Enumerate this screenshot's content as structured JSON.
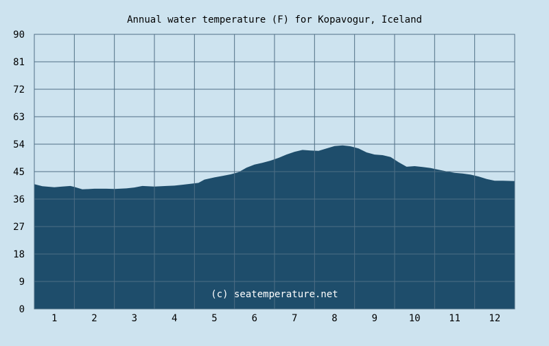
{
  "chart_data": {
    "type": "area",
    "title": "Annual water temperature (F) for Kopavogur, Iceland",
    "xlabel": "",
    "ylabel": "",
    "ylim": [
      0,
      90
    ],
    "xlim": [
      0.5,
      12.5
    ],
    "yticks": [
      "0",
      "9",
      "18",
      "27",
      "36",
      "45",
      "54",
      "63",
      "72",
      "81",
      "90"
    ],
    "xticks": [
      "1",
      "2",
      "3",
      "4",
      "5",
      "6",
      "7",
      "8",
      "9",
      "10",
      "11",
      "12"
    ],
    "grid": true,
    "series": [
      {
        "x": [
          0.5,
          0.7,
          1.0,
          1.2,
          1.4,
          1.5,
          1.7,
          2.0,
          2.3,
          2.5,
          2.8,
          3.0,
          3.2,
          3.5,
          3.8,
          4.0,
          4.2,
          4.4,
          4.6,
          4.75,
          5.0,
          5.2,
          5.4,
          5.6,
          5.8,
          6.0,
          6.2,
          6.4,
          6.6,
          6.8,
          7.0,
          7.2,
          7.4,
          7.6,
          7.8,
          8.0,
          8.2,
          8.4,
          8.6,
          8.8,
          9.0,
          9.2,
          9.4,
          9.6,
          9.8,
          10.0,
          10.2,
          10.4,
          10.6,
          10.8,
          11.0,
          11.2,
          11.4,
          11.6,
          11.8,
          12.0,
          12.2,
          12.5
        ],
        "values": [
          40.9,
          40.2,
          39.9,
          40.1,
          40.3,
          40.0,
          39.2,
          39.4,
          39.4,
          39.3,
          39.5,
          39.8,
          40.3,
          40.1,
          40.3,
          40.4,
          40.7,
          41.0,
          41.3,
          42.4,
          43.1,
          43.6,
          44.1,
          44.8,
          46.3,
          47.3,
          47.9,
          48.6,
          49.5,
          50.6,
          51.5,
          52.1,
          51.9,
          51.8,
          52.6,
          53.4,
          53.6,
          53.3,
          52.6,
          51.3,
          50.6,
          50.4,
          49.8,
          48.1,
          46.6,
          46.8,
          46.5,
          46.2,
          45.6,
          45.1,
          44.6,
          44.4,
          44.0,
          43.4,
          42.6,
          42.0,
          42.0,
          41.9
        ],
        "color": "#1e4d6b"
      }
    ],
    "annotation": "(c) seatemperature.net",
    "colors": {
      "background": "#cde3ef",
      "fill": "#1e4d6b",
      "grid": "#4e6e84",
      "text": "#000000",
      "watermark": "#ffffff"
    }
  }
}
